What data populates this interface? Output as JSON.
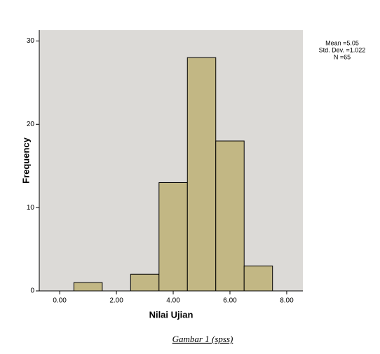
{
  "chart_data": {
    "type": "histogram",
    "bins": [
      0.5,
      1.5,
      2.5,
      3.5,
      4.5,
      5.5,
      6.5,
      7.5
    ],
    "counts": [
      1,
      0,
      2,
      13,
      28,
      18,
      3
    ],
    "color": "#c2b784",
    "xlabel": "Nilai Ujian",
    "ylabel": "Frequency",
    "xlim": [
      -0.72,
      8.57
    ],
    "ylim": [
      0,
      31.3
    ],
    "xticks": [
      {
        "value": 0,
        "label": "0.00"
      },
      {
        "value": 2,
        "label": "2.00"
      },
      {
        "value": 4,
        "label": "4.00"
      },
      {
        "value": 6,
        "label": "6.00"
      },
      {
        "value": 8,
        "label": "8.00"
      }
    ],
    "yticks": [
      0,
      10,
      20,
      30
    ],
    "annotations": [
      "Mean =5.05",
      "Std. Dev. =1.022",
      "N =65"
    ]
  },
  "caption": "Gambar 1 (spss)"
}
